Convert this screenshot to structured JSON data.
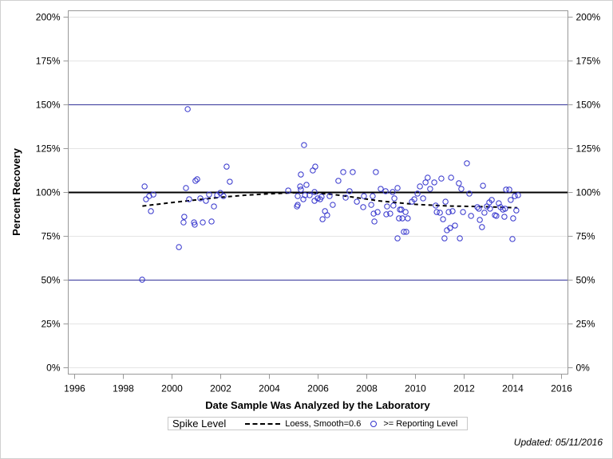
{
  "chart_data": {
    "type": "scatter",
    "title": "",
    "xlabel": "Date Sample Was Analyzed by the Laboratory",
    "ylabel": "Percent Recovery",
    "xlim": [
      1995.7,
      2016.3
    ],
    "ylim": [
      -3.5,
      203.5
    ],
    "x_ticks": [
      1996,
      1998,
      2000,
      2002,
      2004,
      2006,
      2008,
      2010,
      2012,
      2014,
      2016
    ],
    "x_tick_labels": [
      "1996",
      "1998",
      "2000",
      "2002",
      "2004",
      "2006",
      "2008",
      "2010",
      "2012",
      "2014",
      "2016"
    ],
    "y_ticks": [
      0,
      25,
      50,
      75,
      100,
      125,
      150,
      175,
      200
    ],
    "y_tick_labels": [
      "0%",
      "25%",
      "50%",
      "75%",
      "100%",
      "125%",
      "150%",
      "175%",
      "200%"
    ],
    "grid": true,
    "reference_lines": [
      {
        "y": 100,
        "color": "#000000",
        "style": "solid-thick"
      },
      {
        "y": 50,
        "color": "#333399",
        "style": "solid"
      },
      {
        "y": 150,
        "color": "#333399",
        "style": "solid"
      }
    ],
    "legend": {
      "title": "Spike Level",
      "placement": "bottom",
      "entries": [
        {
          "label": "Loess, Smooth=0.6",
          "marker": "dashed-line",
          "color": "#000000"
        },
        {
          "label": ">= Reporting Level",
          "marker": "open-circle",
          "color": "#3333cc"
        }
      ]
    },
    "series": [
      {
        "name": ">= Reporting Level",
        "kind": "scatter",
        "color": "#3333cc",
        "points": [
          [
            1998.79,
            50.0
          ],
          [
            1998.89,
            103.2
          ],
          [
            1998.95,
            95.9
          ],
          [
            1999.08,
            97.7
          ],
          [
            1999.25,
            98.6
          ],
          [
            1999.15,
            89.1
          ],
          [
            2000.3,
            68.6
          ],
          [
            2000.59,
            102.3
          ],
          [
            2000.52,
            85.9
          ],
          [
            2000.49,
            82.7
          ],
          [
            2000.66,
            147.3
          ],
          [
            2000.72,
            95.9
          ],
          [
            2000.98,
            106.4
          ],
          [
            2001.05,
            107.3
          ],
          [
            2000.92,
            82.7
          ],
          [
            2000.95,
            81.4
          ],
          [
            2001.18,
            96.4
          ],
          [
            2001.28,
            82.7
          ],
          [
            2001.41,
            95.0
          ],
          [
            2001.54,
            98.6
          ],
          [
            2001.64,
            83.2
          ],
          [
            2001.74,
            91.8
          ],
          [
            2001.87,
            98.2
          ],
          [
            2002.0,
            99.5
          ],
          [
            2002.13,
            97.7
          ],
          [
            2002.26,
            114.5
          ],
          [
            2002.39,
            105.9
          ],
          [
            2004.79,
            100.9
          ],
          [
            2005.44,
            126.8
          ],
          [
            2005.9,
            114.5
          ],
          [
            2005.8,
            112.3
          ],
          [
            2005.31,
            110.0
          ],
          [
            2005.28,
            103.2
          ],
          [
            2005.54,
            104.1
          ],
          [
            2005.31,
            101.4
          ],
          [
            2005.18,
            97.7
          ],
          [
            2005.48,
            98.2
          ],
          [
            2005.67,
            98.2
          ],
          [
            2005.87,
            100.0
          ],
          [
            2005.41,
            95.9
          ],
          [
            2005.18,
            92.7
          ],
          [
            2005.15,
            91.8
          ],
          [
            2005.87,
            95.0
          ],
          [
            2006.0,
            96.4
          ],
          [
            2006.1,
            95.9
          ],
          [
            2006.16,
            97.3
          ],
          [
            2006.49,
            97.7
          ],
          [
            2006.62,
            92.7
          ],
          [
            2006.3,
            89.1
          ],
          [
            2006.39,
            86.8
          ],
          [
            2006.2,
            84.5
          ],
          [
            2006.85,
            106.4
          ],
          [
            2007.05,
            111.4
          ],
          [
            2007.15,
            96.8
          ],
          [
            2007.31,
            100.5
          ],
          [
            2007.44,
            111.4
          ],
          [
            2007.61,
            94.5
          ],
          [
            2007.9,
            97.7
          ],
          [
            2007.87,
            91.4
          ],
          [
            2008.26,
            97.7
          ],
          [
            2008.2,
            92.7
          ],
          [
            2008.3,
            87.7
          ],
          [
            2008.39,
            111.4
          ],
          [
            2008.46,
            88.6
          ],
          [
            2008.33,
            83.2
          ],
          [
            2008.59,
            101.8
          ],
          [
            2008.79,
            100.5
          ],
          [
            2008.85,
            91.8
          ],
          [
            2008.82,
            87.3
          ],
          [
            2008.98,
            87.7
          ],
          [
            2009.08,
            100.0
          ],
          [
            2009.15,
            96.4
          ],
          [
            2009.11,
            92.3
          ],
          [
            2009.28,
            102.3
          ],
          [
            2009.38,
            90.0
          ],
          [
            2009.44,
            90.0
          ],
          [
            2009.61,
            88.6
          ],
          [
            2009.34,
            85.0
          ],
          [
            2009.48,
            85.0
          ],
          [
            2009.7,
            85.0
          ],
          [
            2009.54,
            77.3
          ],
          [
            2009.64,
            77.3
          ],
          [
            2009.28,
            73.6
          ],
          [
            2009.87,
            94.5
          ],
          [
            2009.97,
            95.9
          ],
          [
            2010.1,
            99.1
          ],
          [
            2010.33,
            96.4
          ],
          [
            2010.2,
            103.2
          ],
          [
            2010.43,
            105.5
          ],
          [
            2010.52,
            108.2
          ],
          [
            2010.62,
            101.8
          ],
          [
            2010.79,
            105.5
          ],
          [
            2010.85,
            92.3
          ],
          [
            2010.89,
            88.6
          ],
          [
            2011.02,
            88.2
          ],
          [
            2011.08,
            107.7
          ],
          [
            2011.15,
            84.5
          ],
          [
            2011.25,
            94.5
          ],
          [
            2011.21,
            73.6
          ],
          [
            2011.31,
            78.2
          ],
          [
            2011.44,
            79.5
          ],
          [
            2011.48,
            108.2
          ],
          [
            2011.38,
            88.6
          ],
          [
            2011.64,
            80.9
          ],
          [
            2011.54,
            89.1
          ],
          [
            2011.8,
            105.0
          ],
          [
            2011.9,
            101.8
          ],
          [
            2011.84,
            73.6
          ],
          [
            2011.97,
            88.6
          ],
          [
            2012.13,
            116.4
          ],
          [
            2012.23,
            99.1
          ],
          [
            2012.3,
            86.4
          ],
          [
            2012.56,
            91.4
          ],
          [
            2012.62,
            90.5
          ],
          [
            2012.66,
            84.1
          ],
          [
            2012.75,
            80.0
          ],
          [
            2012.79,
            103.6
          ],
          [
            2012.85,
            88.2
          ],
          [
            2012.95,
            91.8
          ],
          [
            2013.05,
            94.1
          ],
          [
            2013.08,
            90.5
          ],
          [
            2013.15,
            95.5
          ],
          [
            2013.28,
            86.8
          ],
          [
            2013.34,
            86.4
          ],
          [
            2013.44,
            93.6
          ],
          [
            2013.51,
            91.4
          ],
          [
            2013.61,
            90.0
          ],
          [
            2013.67,
            85.9
          ],
          [
            2013.7,
            90.5
          ],
          [
            2013.74,
            101.4
          ],
          [
            2013.87,
            101.4
          ],
          [
            2013.93,
            95.5
          ],
          [
            2014.03,
            85.0
          ],
          [
            2014.1,
            97.7
          ],
          [
            2014.16,
            89.5
          ],
          [
            2014.23,
            98.2
          ],
          [
            2014.0,
            73.2
          ]
        ]
      },
      {
        "name": "Loess, Smooth=0.6",
        "kind": "line",
        "style": "dashed",
        "color": "#000000",
        "points": [
          [
            1998.8,
            92.0
          ],
          [
            2000.0,
            94.0
          ],
          [
            2001.0,
            95.5
          ],
          [
            2002.0,
            97.0
          ],
          [
            2003.0,
            98.2
          ],
          [
            2004.0,
            99.0
          ],
          [
            2005.0,
            99.6
          ],
          [
            2005.8,
            99.5
          ],
          [
            2006.5,
            98.8
          ],
          [
            2007.0,
            98.0
          ],
          [
            2008.0,
            96.0
          ],
          [
            2008.5,
            95.0
          ],
          [
            2009.2,
            94.0
          ],
          [
            2010.0,
            93.0
          ],
          [
            2010.8,
            92.4
          ],
          [
            2011.5,
            92.0
          ],
          [
            2012.3,
            91.8
          ],
          [
            2013.0,
            91.6
          ],
          [
            2014.2,
            91.0
          ]
        ]
      }
    ]
  },
  "footer": {
    "updated": "Updated: 05/11/2016"
  }
}
